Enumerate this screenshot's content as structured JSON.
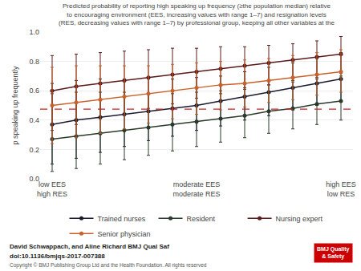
{
  "chart_data": {
    "type": "line",
    "title": "Predicted probability of reporting high speaking up frequency (≥the population median) relative\nto encouraging environment (EES, increasing values with range 1–7) and resignation levels\n(RES, decreasing values with range 1–7) by professional group, keeping all other variables at the",
    "y_label": "p speaking up frequently",
    "categories": [
      "low EES\nhigh RES",
      null,
      null,
      null,
      null,
      null,
      "moderate EES\nmoderate RES",
      null,
      null,
      null,
      null,
      null,
      "high EES\nlow RES"
    ],
    "marker": "circle",
    "line_style": "solid",
    "series": [
      {
        "name": "Trained nurses",
        "color": "#1a1a2e",
        "values": [
          0.37,
          0.4,
          0.42,
          0.44,
          0.46,
          0.48,
          0.5,
          0.53,
          0.56,
          0.59,
          0.62,
          0.65,
          0.68
        ],
        "ci_low": [
          0.1,
          0.14,
          0.18,
          0.22,
          0.26,
          0.29,
          0.33,
          0.36,
          0.4,
          0.43,
          0.47,
          0.5,
          0.53
        ],
        "ci_high": [
          0.65,
          0.67,
          0.68,
          0.68,
          0.68,
          0.68,
          0.69,
          0.7,
          0.73,
          0.76,
          0.79,
          0.82,
          0.86
        ]
      },
      {
        "name": "Resident",
        "color": "#2a3a2a",
        "values": [
          0.27,
          0.29,
          0.31,
          0.33,
          0.35,
          0.37,
          0.39,
          0.41,
          0.43,
          0.46,
          0.48,
          0.51,
          0.53
        ],
        "ci_low": [
          0.05,
          0.07,
          0.1,
          0.13,
          0.16,
          0.19,
          0.22,
          0.25,
          0.28,
          0.31,
          0.34,
          0.37,
          0.4
        ],
        "ci_high": [
          0.58,
          0.59,
          0.59,
          0.59,
          0.58,
          0.58,
          0.59,
          0.6,
          0.62,
          0.64,
          0.66,
          0.68,
          0.7
        ]
      },
      {
        "name": "Nursing expert",
        "color": "#5c1a1a",
        "values": [
          0.6,
          0.63,
          0.65,
          0.67,
          0.69,
          0.71,
          0.73,
          0.75,
          0.77,
          0.79,
          0.81,
          0.83,
          0.85
        ],
        "ci_low": [
          0.33,
          0.37,
          0.41,
          0.44,
          0.48,
          0.51,
          0.55,
          0.58,
          0.61,
          0.64,
          0.67,
          0.69,
          0.72
        ],
        "ci_high": [
          0.84,
          0.85,
          0.86,
          0.87,
          0.88,
          0.89,
          0.89,
          0.9,
          0.9,
          0.91,
          0.92,
          0.94,
          0.97
        ]
      },
      {
        "name": "Senior physician",
        "color": "#c8622a",
        "values": [
          0.5,
          0.52,
          0.54,
          0.56,
          0.58,
          0.6,
          0.62,
          0.64,
          0.65,
          0.67,
          0.69,
          0.71,
          0.73
        ],
        "ci_low": [
          0.24,
          0.28,
          0.31,
          0.34,
          0.38,
          0.41,
          0.44,
          0.47,
          0.49,
          0.52,
          0.54,
          0.57,
          0.59
        ],
        "ci_high": [
          0.76,
          0.77,
          0.77,
          0.77,
          0.77,
          0.78,
          0.79,
          0.8,
          0.81,
          0.82,
          0.84,
          0.86,
          0.88
        ]
      }
    ],
    "reference_lines": [
      {
        "y": 0.475,
        "color": "#cc2222",
        "line_style": "dashed"
      }
    ],
    "ylim": [
      0,
      1
    ],
    "yticks": [
      {
        "value": 0,
        "label": "0.0"
      },
      0.2,
      0.4,
      0.6,
      0.8,
      {
        "value": 1,
        "label": "1.0"
      }
    ],
    "grid": true,
    "legend": "bottom",
    "annotations": [
      "David Schwappach, and Aline Richard BMJ Qual Saf",
      "doi:10.1136/bmjqs-2017-007388",
      "Copyright © BMJ Publishing Group Ltd and the Health Foundation. All rights reserved",
      "BMJ Quality\n& Safety"
    ]
  }
}
